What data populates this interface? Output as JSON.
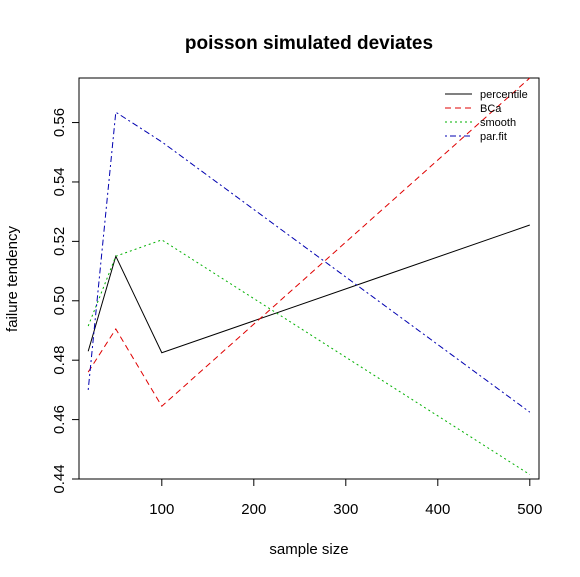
{
  "chart_data": {
    "type": "line",
    "title": "poisson simulated deviates",
    "xlabel": "sample size",
    "ylabel": "failure tendency",
    "x": [
      20,
      50,
      100,
      500
    ],
    "xlim": [
      10,
      510
    ],
    "ylim": [
      0.44,
      0.575
    ],
    "xticks": [
      100,
      200,
      300,
      400,
      500
    ],
    "yticks": [
      0.44,
      0.46,
      0.48,
      0.5,
      0.52,
      0.54,
      0.56
    ],
    "ytick_labels": [
      "0.44",
      "0.46",
      "0.48",
      "0.50",
      "0.52",
      "0.54",
      "0.56"
    ],
    "legend_position": "top-right",
    "series": [
      {
        "name": "percentile",
        "color": "#000000",
        "dash": "solid",
        "values": [
          0.483,
          0.515,
          0.4825,
          0.5255
        ]
      },
      {
        "name": "BCa",
        "color": "#df0000",
        "dash": "dashed",
        "values": [
          0.476,
          0.4905,
          0.4645,
          0.575
        ]
      },
      {
        "name": "smooth",
        "color": "#00b000",
        "dash": "dotted",
        "values": [
          0.4915,
          0.515,
          0.5205,
          0.4415
        ]
      },
      {
        "name": "par.fit",
        "color": "#0000b0",
        "dash": "dotdash",
        "values": [
          0.47,
          0.5635,
          0.5535,
          0.4625
        ]
      }
    ]
  }
}
